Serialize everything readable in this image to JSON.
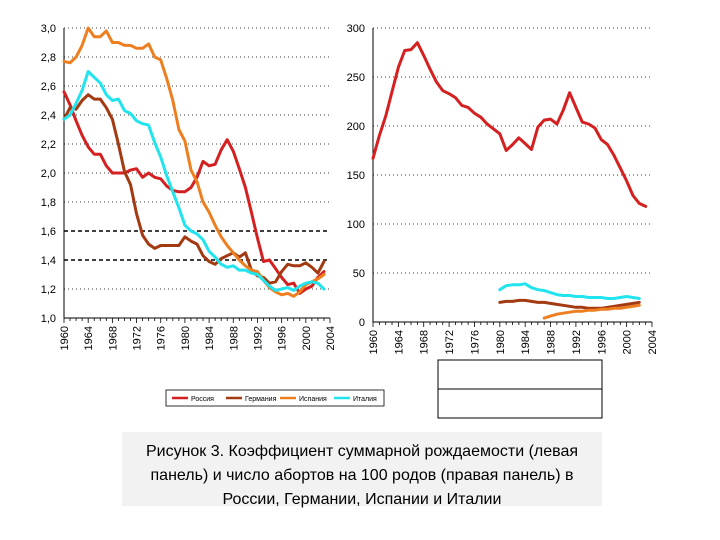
{
  "colors": {
    "russia": "#d42020",
    "germany": "#a33a12",
    "spain": "#ee7f20",
    "italy": "#21e4ee"
  },
  "legend": {
    "items": [
      {
        "key": "russia",
        "label": "Россия"
      },
      {
        "key": "germany",
        "label": "Германия"
      },
      {
        "key": "spain",
        "label": "Испания"
      },
      {
        "key": "italy",
        "label": "Италия"
      }
    ]
  },
  "caption": "Рисунок 3. Коэффициент суммарной рождаемости (левая панель) и число абортов на 100 родов (правая панель) в России, Германии, Испании и Италии",
  "chart_data": [
    {
      "type": "line",
      "title": "",
      "xlabel": "",
      "ylabel": "",
      "xlim": [
        1960,
        2004
      ],
      "ylim": [
        1.0,
        3.0
      ],
      "x_ticks": [
        "1960",
        "1964",
        "1968",
        "1972",
        "1976",
        "1980",
        "1984",
        "1988",
        "1992",
        "1996",
        "2000",
        "2004"
      ],
      "y_ticks": [
        "1,0",
        "1,2",
        "1,4",
        "1,6",
        "1,8",
        "2,0",
        "2,2",
        "2,4",
        "2,6",
        "2,8",
        "3,0"
      ],
      "grid": "dotted horizontal, dashed at 1,4 and 1,6",
      "series": [
        {
          "key": "russia",
          "x": [
            1960,
            1961,
            1962,
            1963,
            1964,
            1965,
            1966,
            1967,
            1968,
            1969,
            1970,
            1971,
            1972,
            1973,
            1974,
            1975,
            1976,
            1977,
            1978,
            1979,
            1980,
            1981,
            1982,
            1983,
            1984,
            1985,
            1986,
            1987,
            1988,
            1989,
            1990,
            1991,
            1992,
            1993,
            1994,
            1995,
            1996,
            1997,
            1998,
            1999,
            2000,
            2001,
            2002,
            2003
          ],
          "y": [
            2.56,
            2.47,
            2.36,
            2.26,
            2.18,
            2.13,
            2.13,
            2.05,
            2.0,
            2.0,
            2.0,
            2.02,
            2.03,
            1.97,
            2.0,
            1.97,
            1.96,
            1.91,
            1.88,
            1.87,
            1.87,
            1.9,
            1.97,
            2.08,
            2.05,
            2.06,
            2.16,
            2.23,
            2.15,
            2.03,
            1.9,
            1.73,
            1.55,
            1.39,
            1.4,
            1.34,
            1.28,
            1.23,
            1.24,
            1.17,
            1.2,
            1.22,
            1.28,
            1.32
          ]
        },
        {
          "key": "germany",
          "x": [
            1960,
            1961,
            1962,
            1963,
            1964,
            1965,
            1966,
            1967,
            1968,
            1969,
            1970,
            1971,
            1972,
            1973,
            1974,
            1975,
            1976,
            1977,
            1978,
            1979,
            1980,
            1981,
            1982,
            1983,
            1984,
            1985,
            1986,
            1987,
            1988,
            1989,
            1990,
            1991,
            1992,
            1993,
            1994,
            1995,
            1996,
            1997,
            1998,
            1999,
            2000,
            2001,
            2002,
            2003
          ],
          "y": [
            2.37,
            2.45,
            2.44,
            2.5,
            2.54,
            2.51,
            2.51,
            2.45,
            2.37,
            2.2,
            2.01,
            1.92,
            1.72,
            1.57,
            1.51,
            1.48,
            1.5,
            1.5,
            1.5,
            1.5,
            1.56,
            1.53,
            1.51,
            1.43,
            1.39,
            1.37,
            1.41,
            1.43,
            1.45,
            1.42,
            1.45,
            1.33,
            1.29,
            1.28,
            1.24,
            1.25,
            1.32,
            1.37,
            1.36,
            1.36,
            1.38,
            1.35,
            1.31,
            1.39
          ]
        },
        {
          "key": "spain",
          "x": [
            1960,
            1961,
            1962,
            1963,
            1964,
            1965,
            1966,
            1967,
            1968,
            1969,
            1970,
            1971,
            1972,
            1973,
            1974,
            1975,
            1976,
            1977,
            1978,
            1979,
            1980,
            1981,
            1982,
            1983,
            1984,
            1985,
            1986,
            1987,
            1988,
            1989,
            1990,
            1991,
            1992,
            1993,
            1994,
            1995,
            1996,
            1997,
            1998,
            1999,
            2000,
            2001,
            2002,
            2003
          ],
          "y": [
            2.77,
            2.76,
            2.8,
            2.88,
            3.0,
            2.94,
            2.94,
            2.98,
            2.9,
            2.9,
            2.88,
            2.88,
            2.86,
            2.86,
            2.89,
            2.8,
            2.78,
            2.65,
            2.5,
            2.3,
            2.22,
            2.02,
            1.94,
            1.8,
            1.73,
            1.64,
            1.56,
            1.5,
            1.45,
            1.4,
            1.36,
            1.33,
            1.32,
            1.26,
            1.21,
            1.18,
            1.16,
            1.17,
            1.15,
            1.18,
            1.23,
            1.25,
            1.27,
            1.3
          ]
        },
        {
          "key": "italy",
          "x": [
            1960,
            1961,
            1962,
            1963,
            1964,
            1965,
            1966,
            1967,
            1968,
            1969,
            1970,
            1971,
            1972,
            1973,
            1974,
            1975,
            1976,
            1977,
            1978,
            1979,
            1980,
            1981,
            1982,
            1983,
            1984,
            1985,
            1986,
            1987,
            1988,
            1989,
            1990,
            1991,
            1992,
            1993,
            1994,
            1995,
            1996,
            1997,
            1998,
            1999,
            2000,
            2001,
            2002,
            2003
          ],
          "y": [
            2.37,
            2.4,
            2.48,
            2.57,
            2.7,
            2.66,
            2.62,
            2.54,
            2.5,
            2.51,
            2.43,
            2.41,
            2.36,
            2.34,
            2.33,
            2.21,
            2.11,
            1.98,
            1.87,
            1.76,
            1.64,
            1.6,
            1.58,
            1.54,
            1.46,
            1.42,
            1.37,
            1.35,
            1.36,
            1.33,
            1.33,
            1.31,
            1.3,
            1.26,
            1.22,
            1.19,
            1.2,
            1.21,
            1.19,
            1.22,
            1.24,
            1.25,
            1.24,
            1.2
          ]
        }
      ]
    },
    {
      "type": "line",
      "title": "",
      "xlabel": "",
      "ylabel": "",
      "xlim": [
        1960,
        2004
      ],
      "ylim": [
        0,
        300
      ],
      "x_ticks": [
        "1960",
        "1964",
        "1968",
        "1972",
        "1976",
        "1980",
        "1984",
        "1988",
        "1992",
        "1996",
        "2000",
        "2004"
      ],
      "y_ticks": [
        "0",
        "50",
        "100",
        "150",
        "200",
        "250",
        "300"
      ],
      "grid": "dotted horizontal",
      "series": [
        {
          "key": "russia",
          "x": [
            1960,
            1961,
            1962,
            1963,
            1964,
            1965,
            1966,
            1967,
            1968,
            1969,
            1970,
            1971,
            1972,
            1973,
            1974,
            1975,
            1976,
            1977,
            1978,
            1979,
            1980,
            1981,
            1982,
            1983,
            1984,
            1985,
            1986,
            1987,
            1988,
            1989,
            1990,
            1991,
            1992,
            1993,
            1994,
            1995,
            1996,
            1997,
            1998,
            1999,
            2000,
            2001,
            2002,
            2003
          ],
          "y": [
            167,
            190,
            210,
            235,
            260,
            277,
            278,
            285,
            272,
            258,
            245,
            236,
            233,
            229,
            221,
            219,
            213,
            209,
            202,
            197,
            192,
            175,
            181,
            188,
            182,
            176,
            199,
            206,
            207,
            202,
            216,
            234,
            219,
            204,
            202,
            198,
            186,
            181,
            170,
            157,
            144,
            129,
            121,
            118
          ]
        },
        {
          "key": "germany",
          "x": [
            1980,
            1981,
            1982,
            1983,
            1984,
            1985,
            1986,
            1987,
            1988,
            1989,
            1990,
            1991,
            1992,
            1993,
            1994,
            1995,
            1996,
            1997,
            1998,
            1999,
            2000,
            2001,
            2002
          ],
          "y": [
            20,
            21,
            21,
            22,
            22,
            21,
            20,
            20,
            19,
            18,
            17,
            16,
            15,
            15,
            14,
            14,
            14,
            15,
            16,
            17,
            18,
            19,
            20
          ]
        },
        {
          "key": "spain",
          "x": [
            1987,
            1988,
            1989,
            1990,
            1991,
            1992,
            1993,
            1994,
            1995,
            1996,
            1997,
            1998,
            1999,
            2000,
            2001,
            2002
          ],
          "y": [
            4,
            6,
            8,
            9,
            10,
            11,
            11,
            12,
            12,
            13,
            13,
            14,
            14,
            15,
            16,
            17
          ]
        },
        {
          "key": "italy",
          "x": [
            1980,
            1981,
            1982,
            1983,
            1984,
            1985,
            1986,
            1987,
            1988,
            1989,
            1990,
            1991,
            1992,
            1993,
            1994,
            1995,
            1996,
            1997,
            1998,
            1999,
            2000,
            2001,
            2002
          ],
          "y": [
            33,
            37,
            38,
            38,
            39,
            35,
            33,
            32,
            30,
            28,
            27,
            27,
            26,
            26,
            25,
            25,
            25,
            24,
            24,
            25,
            26,
            25,
            24
          ]
        }
      ]
    }
  ]
}
